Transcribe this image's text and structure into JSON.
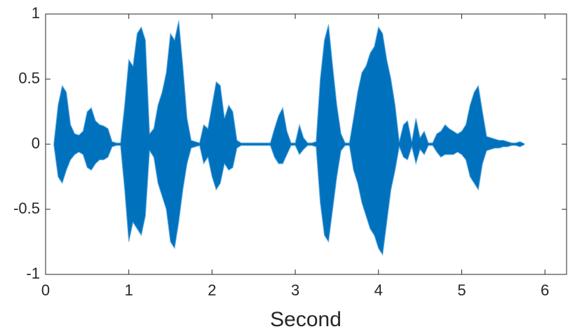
{
  "chart_data": {
    "type": "waveform",
    "xlabel": "Second",
    "x": [
      0.1,
      0.15,
      0.2,
      0.25,
      0.3,
      0.35,
      0.4,
      0.45,
      0.5,
      0.55,
      0.6,
      0.65,
      0.7,
      0.75,
      0.8,
      0.85,
      0.9,
      0.95,
      1.0,
      1.05,
      1.1,
      1.15,
      1.2,
      1.25,
      1.3,
      1.35,
      1.4,
      1.45,
      1.5,
      1.55,
      1.6,
      1.65,
      1.7,
      1.75,
      1.8,
      1.85,
      1.9,
      1.95,
      2.0,
      2.05,
      2.1,
      2.15,
      2.2,
      2.25,
      2.3,
      2.35,
      2.4,
      2.45,
      2.5,
      2.55,
      2.6,
      2.65,
      2.7,
      2.75,
      2.8,
      2.85,
      2.9,
      2.95,
      3.0,
      3.05,
      3.1,
      3.15,
      3.2,
      3.25,
      3.3,
      3.35,
      3.4,
      3.45,
      3.5,
      3.55,
      3.6,
      3.65,
      3.7,
      3.75,
      3.8,
      3.85,
      3.9,
      3.95,
      4.0,
      4.05,
      4.1,
      4.15,
      4.2,
      4.25,
      4.3,
      4.35,
      4.4,
      4.45,
      4.5,
      4.55,
      4.6,
      4.65,
      4.7,
      4.75,
      4.8,
      4.85,
      4.9,
      4.95,
      5.0,
      5.05,
      5.1,
      5.15,
      5.2,
      5.25,
      5.3,
      5.35,
      5.4,
      5.45,
      5.5,
      5.55,
      5.6,
      5.65,
      5.7,
      5.75
    ],
    "upper": [
      0.01,
      0.3,
      0.45,
      0.4,
      0.15,
      0.08,
      0.07,
      0.1,
      0.25,
      0.28,
      0.18,
      0.15,
      0.14,
      0.12,
      0.02,
      0.01,
      0.01,
      0.3,
      0.65,
      0.6,
      0.85,
      0.9,
      0.8,
      0.08,
      0.12,
      0.3,
      0.4,
      0.55,
      0.85,
      0.8,
      0.95,
      0.6,
      0.2,
      0.03,
      0.02,
      0.01,
      0.15,
      0.12,
      0.3,
      0.48,
      0.45,
      0.2,
      0.3,
      0.25,
      0.03,
      0.01,
      0.01,
      0.01,
      0.01,
      0.01,
      0.01,
      0.01,
      0.01,
      0.12,
      0.22,
      0.28,
      0.1,
      0.01,
      0.01,
      0.15,
      0.05,
      0.01,
      0.01,
      0.02,
      0.5,
      0.8,
      0.92,
      0.6,
      0.3,
      0.08,
      0.01,
      0.01,
      0.2,
      0.4,
      0.55,
      0.6,
      0.7,
      0.75,
      0.9,
      0.85,
      0.65,
      0.5,
      0.3,
      0.02,
      0.15,
      0.18,
      0.02,
      0.2,
      0.05,
      0.1,
      0.01,
      0.01,
      0.08,
      0.1,
      0.15,
      0.12,
      0.1,
      0.08,
      0.1,
      0.15,
      0.3,
      0.4,
      0.45,
      0.25,
      0.06,
      0.05,
      0.04,
      0.03,
      0.03,
      0.02,
      0.01,
      0.01,
      0.02,
      0.005
    ],
    "lower": [
      -0.01,
      -0.25,
      -0.3,
      -0.2,
      -0.12,
      -0.08,
      -0.06,
      -0.08,
      -0.18,
      -0.2,
      -0.15,
      -0.12,
      -0.12,
      -0.1,
      -0.02,
      -0.01,
      -0.01,
      -0.35,
      -0.75,
      -0.6,
      -0.65,
      -0.7,
      -0.55,
      -0.05,
      -0.1,
      -0.3,
      -0.4,
      -0.5,
      -0.75,
      -0.8,
      -0.6,
      -0.35,
      -0.15,
      -0.03,
      -0.02,
      -0.01,
      -0.15,
      -0.1,
      -0.25,
      -0.35,
      -0.3,
      -0.15,
      -0.2,
      -0.18,
      -0.03,
      -0.01,
      -0.01,
      -0.01,
      -0.01,
      -0.01,
      -0.01,
      -0.01,
      -0.01,
      -0.1,
      -0.15,
      -0.15,
      -0.08,
      -0.01,
      -0.01,
      -0.08,
      -0.04,
      -0.01,
      -0.01,
      -0.02,
      -0.45,
      -0.7,
      -0.75,
      -0.5,
      -0.25,
      -0.05,
      -0.01,
      -0.01,
      -0.2,
      -0.3,
      -0.45,
      -0.55,
      -0.65,
      -0.7,
      -0.8,
      -0.85,
      -0.6,
      -0.35,
      -0.2,
      -0.02,
      -0.1,
      -0.12,
      -0.02,
      -0.15,
      -0.04,
      -0.08,
      -0.01,
      -0.01,
      -0.06,
      -0.1,
      -0.08,
      -0.08,
      -0.08,
      -0.06,
      -0.08,
      -0.12,
      -0.25,
      -0.3,
      -0.35,
      -0.15,
      -0.05,
      -0.04,
      -0.03,
      -0.03,
      -0.02,
      -0.02,
      -0.01,
      -0.01,
      -0.02,
      -0.005
    ],
    "color": "#0072bd",
    "edge_color": "#6aaee0",
    "xlim": [
      0,
      6.26
    ],
    "xticks": [
      0,
      1,
      2,
      3,
      4,
      5,
      6
    ],
    "ylim": [
      -1,
      1
    ],
    "yticks": [
      -1,
      -0.5,
      0,
      0.5,
      1
    ]
  }
}
